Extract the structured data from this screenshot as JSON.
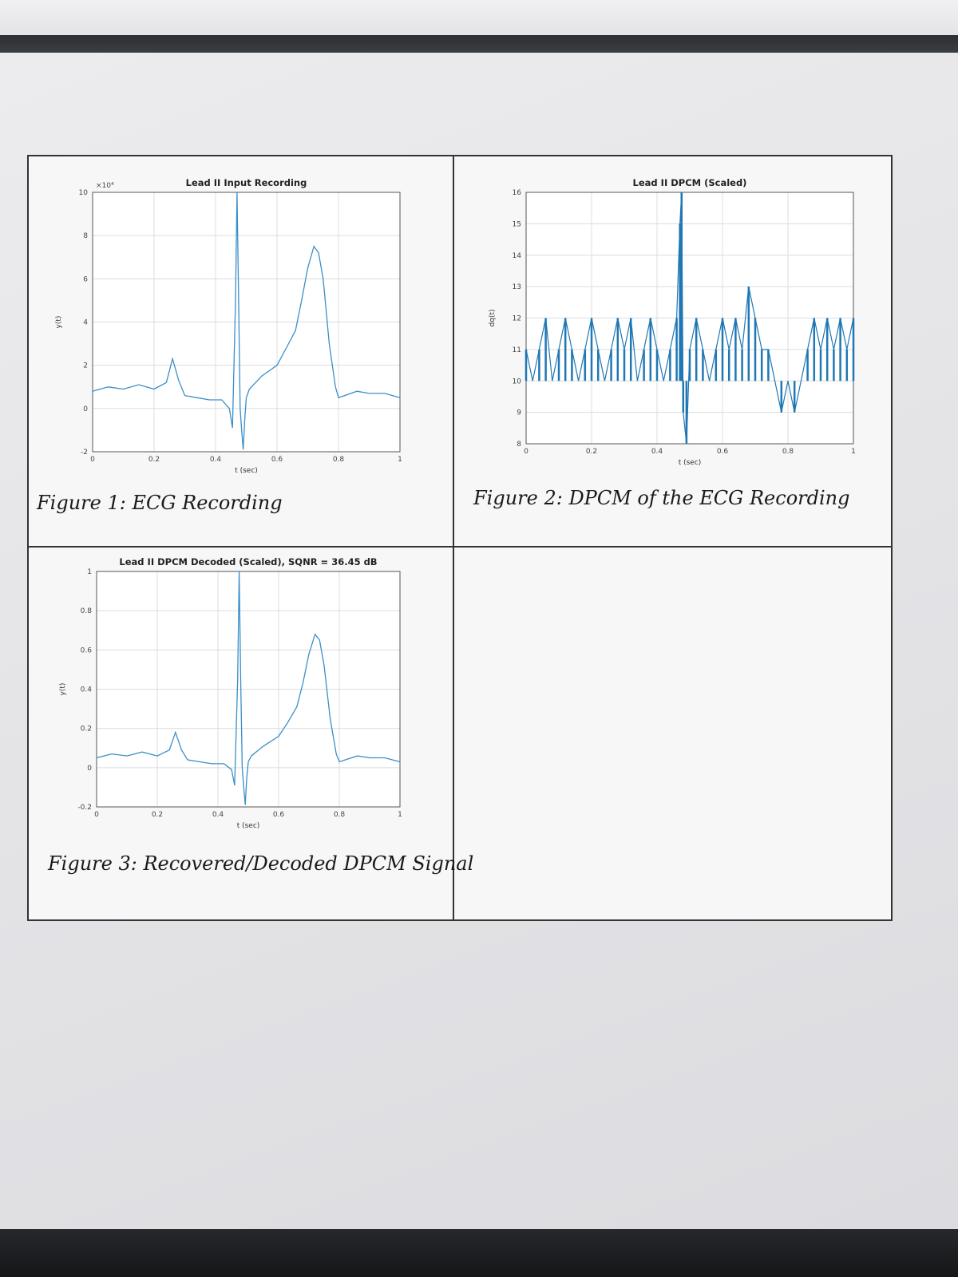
{
  "figures": [
    {
      "caption": "Figure 1: ECG Recording",
      "chart_data": {
        "type": "line",
        "title": "Lead II Input Recording",
        "xlabel": "t (sec)",
        "ylabel": "y(t)",
        "exponent_label": "×10⁴",
        "xlim": [
          0,
          1
        ],
        "ylim": [
          -2,
          10
        ],
        "xticks": [
          0,
          0.2,
          0.4,
          0.6,
          0.8,
          1
        ],
        "xtick_labels": [
          "0",
          "0.2",
          "0.4",
          "0.6",
          "0.8",
          "1"
        ],
        "yticks": [
          -2,
          0,
          2,
          4,
          6,
          8,
          10
        ],
        "ytick_labels": [
          "-2",
          "0",
          "2",
          "4",
          "6",
          "8",
          "10"
        ],
        "grid": true,
        "x": [
          0,
          0.05,
          0.1,
          0.15,
          0.2,
          0.24,
          0.26,
          0.28,
          0.3,
          0.34,
          0.38,
          0.42,
          0.445,
          0.455,
          0.465,
          0.47,
          0.475,
          0.48,
          0.485,
          0.49,
          0.495,
          0.5,
          0.51,
          0.55,
          0.6,
          0.63,
          0.66,
          0.68,
          0.7,
          0.72,
          0.735,
          0.75,
          0.77,
          0.79,
          0.8,
          0.82,
          0.86,
          0.9,
          0.95,
          1.0
        ],
        "y": [
          0.8,
          1.0,
          0.9,
          1.1,
          0.9,
          1.2,
          2.3,
          1.3,
          0.6,
          0.5,
          0.4,
          0.4,
          0.0,
          -0.9,
          5.0,
          10.0,
          5.0,
          0.0,
          -1.0,
          -1.9,
          -0.5,
          0.5,
          0.9,
          1.5,
          2.0,
          2.8,
          3.6,
          5.0,
          6.5,
          7.5,
          7.2,
          6.0,
          3.0,
          1.0,
          0.5,
          0.6,
          0.8,
          0.7,
          0.7,
          0.5
        ]
      }
    },
    {
      "caption": "Figure 2: DPCM of the ECG Recording",
      "chart_data": {
        "type": "line",
        "title": "Lead II DPCM (Scaled)",
        "xlabel": "t (sec)",
        "ylabel": "dq(t)",
        "xlim": [
          0,
          1
        ],
        "ylim": [
          8,
          16
        ],
        "xticks": [
          0,
          0.2,
          0.4,
          0.6,
          0.8,
          1
        ],
        "xtick_labels": [
          "0",
          "0.2",
          "0.4",
          "0.6",
          "0.8",
          "1"
        ],
        "yticks": [
          8,
          9,
          10,
          11,
          12,
          13,
          14,
          15,
          16
        ],
        "ytick_labels": [
          "8",
          "9",
          "10",
          "11",
          "12",
          "13",
          "14",
          "15",
          "16"
        ],
        "grid": true,
        "x": [
          0.0,
          0.02,
          0.04,
          0.06,
          0.08,
          0.1,
          0.12,
          0.14,
          0.16,
          0.18,
          0.2,
          0.22,
          0.24,
          0.26,
          0.28,
          0.3,
          0.32,
          0.34,
          0.36,
          0.38,
          0.4,
          0.42,
          0.44,
          0.46,
          0.47,
          0.475,
          0.48,
          0.49,
          0.5,
          0.52,
          0.54,
          0.56,
          0.58,
          0.6,
          0.62,
          0.64,
          0.66,
          0.68,
          0.7,
          0.72,
          0.74,
          0.76,
          0.78,
          0.8,
          0.82,
          0.84,
          0.86,
          0.88,
          0.9,
          0.92,
          0.94,
          0.96,
          0.98,
          1.0
        ],
        "y": [
          11,
          10,
          11,
          12,
          10,
          11,
          12,
          11,
          10,
          11,
          12,
          11,
          10,
          11,
          12,
          11,
          12,
          10,
          11,
          12,
          11,
          10,
          11,
          12,
          15,
          16,
          9,
          8,
          11,
          12,
          11,
          10,
          11,
          12,
          11,
          12,
          11,
          13,
          12,
          11,
          11,
          10,
          9,
          10,
          9,
          10,
          11,
          12,
          11,
          12,
          11,
          12,
          11,
          12
        ]
      }
    },
    {
      "caption": "Figure 3: Recovered/Decoded DPCM Signal",
      "chart_data": {
        "type": "line",
        "title": "Lead II DPCM Decoded (Scaled), SQNR = 36.45 dB",
        "xlabel": "t (sec)",
        "ylabel": "y(t)",
        "xlim": [
          0,
          1
        ],
        "ylim": [
          -0.2,
          1
        ],
        "xticks": [
          0,
          0.2,
          0.4,
          0.6,
          0.8,
          1
        ],
        "xtick_labels": [
          "0",
          "0.2",
          "0.4",
          "0.6",
          "0.8",
          "1"
        ],
        "yticks": [
          -0.2,
          0,
          0.2,
          0.4,
          0.6,
          0.8,
          1
        ],
        "ytick_labels": [
          "-0.2",
          "0",
          "0.2",
          "0.4",
          "0.6",
          "0.8",
          "1"
        ],
        "grid": true,
        "x": [
          0,
          0.05,
          0.1,
          0.15,
          0.2,
          0.24,
          0.26,
          0.28,
          0.3,
          0.34,
          0.38,
          0.42,
          0.445,
          0.455,
          0.465,
          0.47,
          0.475,
          0.48,
          0.485,
          0.49,
          0.495,
          0.5,
          0.51,
          0.55,
          0.6,
          0.63,
          0.66,
          0.68,
          0.7,
          0.72,
          0.735,
          0.75,
          0.77,
          0.79,
          0.8,
          0.82,
          0.86,
          0.9,
          0.95,
          1.0
        ],
        "y": [
          0.05,
          0.07,
          0.06,
          0.08,
          0.06,
          0.09,
          0.18,
          0.09,
          0.04,
          0.03,
          0.02,
          0.02,
          -0.01,
          -0.09,
          0.45,
          1.0,
          0.45,
          0.0,
          -0.1,
          -0.19,
          -0.05,
          0.03,
          0.06,
          0.11,
          0.16,
          0.23,
          0.31,
          0.43,
          0.58,
          0.68,
          0.65,
          0.52,
          0.25,
          0.07,
          0.03,
          0.04,
          0.06,
          0.05,
          0.05,
          0.03
        ]
      }
    }
  ]
}
